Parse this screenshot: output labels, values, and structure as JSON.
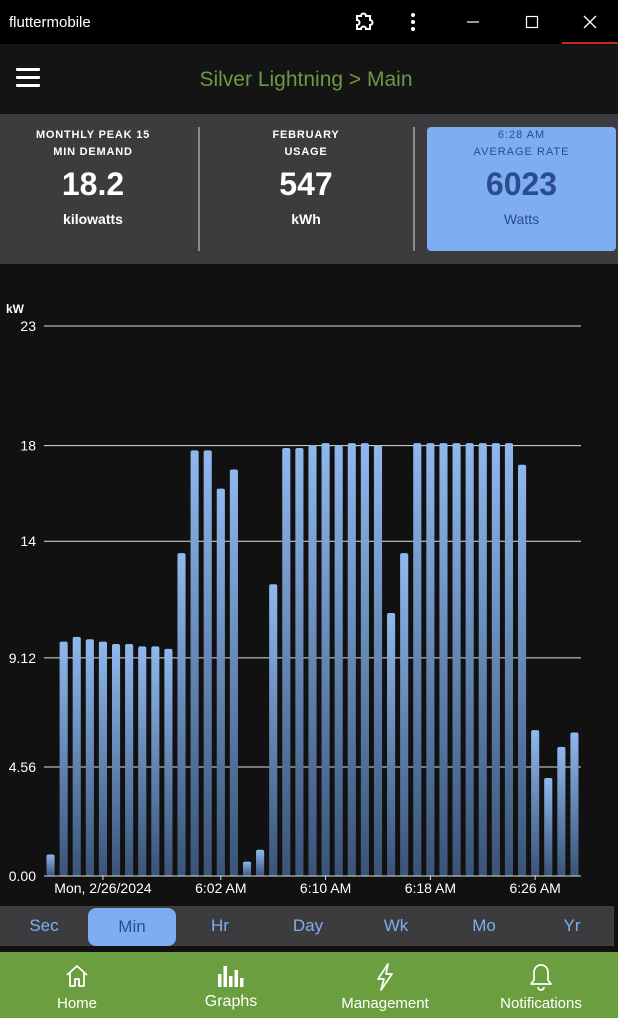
{
  "window": {
    "title": "fluttermobile"
  },
  "header": {
    "title": "Silver Lightning > Main"
  },
  "stats": [
    {
      "label_line1": "MONTHLY PEAK 15",
      "label_line2": "MIN DEMAND",
      "value": "18.2",
      "unit": "kilowatts"
    },
    {
      "label_line1": "FEBRUARY",
      "label_line2": "USAGE",
      "value": "547",
      "unit": "kWh"
    },
    {
      "label_line1": "6:28 AM",
      "label_line2": "AVERAGE RATE",
      "value": "6023",
      "unit": "Watts"
    }
  ],
  "periods": [
    "Sec",
    "Min",
    "Hr",
    "Day",
    "Wk",
    "Mo",
    "Yr"
  ],
  "active_period": "Min",
  "nav": {
    "home": "Home",
    "graphs": "Graphs",
    "management": "Management",
    "notifications": "Notifications"
  },
  "colors": {
    "accent_blue": "#7fadf2",
    "header_green": "#6a9a45",
    "nav_green": "#6a9e3f"
  },
  "chart_data": {
    "type": "bar",
    "ylabel": "kW",
    "ylim": [
      0,
      23
    ],
    "yticks": [
      {
        "value": 0,
        "label": "0.00"
      },
      {
        "value": 4.56,
        "label": "4.56"
      },
      {
        "value": 9.12,
        "label": "9.12"
      },
      {
        "value": 14,
        "label": "14"
      },
      {
        "value": 18,
        "label": "18"
      },
      {
        "value": 23,
        "label": "23"
      }
    ],
    "xticks": [
      {
        "index": 4,
        "label": "Mon, 2/26/2024"
      },
      {
        "index": 13,
        "label": "6:02 AM"
      },
      {
        "index": 21,
        "label": "6:10 AM"
      },
      {
        "index": 29,
        "label": "6:18 AM"
      },
      {
        "index": 37,
        "label": "6:26 AM"
      }
    ],
    "grid": true,
    "values": [
      0.9,
      9.8,
      10.0,
      9.9,
      9.8,
      9.7,
      9.7,
      9.6,
      9.6,
      9.5,
      13.5,
      17.8,
      17.8,
      16.2,
      17.0,
      0.6,
      1.1,
      12.2,
      17.9,
      17.9,
      18.0,
      18.1,
      18.0,
      18.1,
      18.1,
      18.0,
      11.0,
      13.5,
      18.1,
      18.1,
      18.1,
      18.1,
      18.1,
      18.1,
      18.1,
      18.1,
      17.2,
      6.1,
      4.1,
      5.4,
      6.0
    ]
  }
}
